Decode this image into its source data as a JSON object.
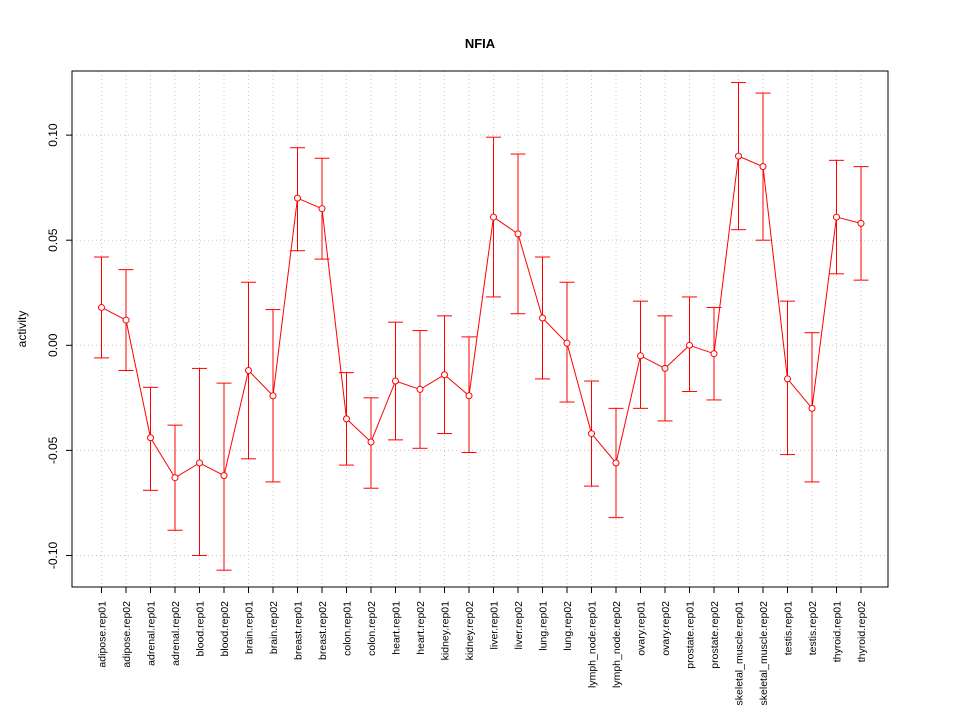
{
  "chart_data": {
    "type": "line",
    "title": "NFIA",
    "xlabel": "",
    "ylabel": "activity",
    "ylim": [
      -0.115,
      0.1305
    ],
    "yticks": [
      -0.1,
      -0.05,
      0.0,
      0.05,
      0.1
    ],
    "ytick_labels": [
      "-0.10",
      "-0.05",
      "0.00",
      "0.05",
      "0.10"
    ],
    "grid": true,
    "color": "#ff0000",
    "grid_color": "#c8c8c8",
    "categories": [
      "adipose.rep01",
      "adipose.rep02",
      "adrenal.rep01",
      "adrenal.rep02",
      "blood.rep01",
      "blood.rep02",
      "brain.rep01",
      "brain.rep02",
      "breast.rep01",
      "breast.rep02",
      "colon.rep01",
      "colon.rep02",
      "heart.rep01",
      "heart.rep02",
      "kidney.rep01",
      "kidney.rep02",
      "liver.rep01",
      "liver.rep02",
      "lung.rep01",
      "lung.rep02",
      "lymph_node.rep01",
      "lymph_node.rep02",
      "ovary.rep01",
      "ovary.rep02",
      "prostate.rep01",
      "prostate.rep02",
      "skeletal_muscle.rep01",
      "skeletal_muscle.rep02",
      "testis.rep01",
      "testis.rep02",
      "thyroid.rep01",
      "thyroid.rep02"
    ],
    "series": [
      {
        "name": "NFIA",
        "values": [
          0.018,
          0.012,
          -0.044,
          -0.063,
          -0.056,
          -0.062,
          -0.012,
          -0.024,
          0.07,
          0.065,
          -0.035,
          -0.046,
          -0.017,
          -0.021,
          -0.014,
          -0.024,
          0.061,
          0.053,
          0.013,
          0.001,
          -0.042,
          -0.056,
          -0.005,
          -0.011,
          0.0,
          -0.004,
          0.09,
          0.085,
          -0.016,
          -0.03,
          0.061,
          0.058
        ],
        "upper": [
          0.042,
          0.036,
          -0.02,
          -0.038,
          -0.011,
          -0.018,
          0.03,
          0.017,
          0.094,
          0.089,
          -0.013,
          -0.025,
          0.011,
          0.007,
          0.014,
          0.004,
          0.099,
          0.091,
          0.042,
          0.03,
          -0.017,
          -0.03,
          0.021,
          0.014,
          0.023,
          0.018,
          0.125,
          0.12,
          0.021,
          0.006,
          0.088,
          0.085
        ],
        "lower": [
          -0.006,
          -0.012,
          -0.069,
          -0.088,
          -0.1,
          -0.107,
          -0.054,
          -0.065,
          0.045,
          0.041,
          -0.057,
          -0.068,
          -0.045,
          -0.049,
          -0.042,
          -0.051,
          0.023,
          0.015,
          -0.016,
          -0.027,
          -0.067,
          -0.082,
          -0.03,
          -0.036,
          -0.022,
          -0.026,
          0.055,
          0.05,
          -0.052,
          -0.065,
          0.034,
          0.031
        ]
      }
    ]
  }
}
